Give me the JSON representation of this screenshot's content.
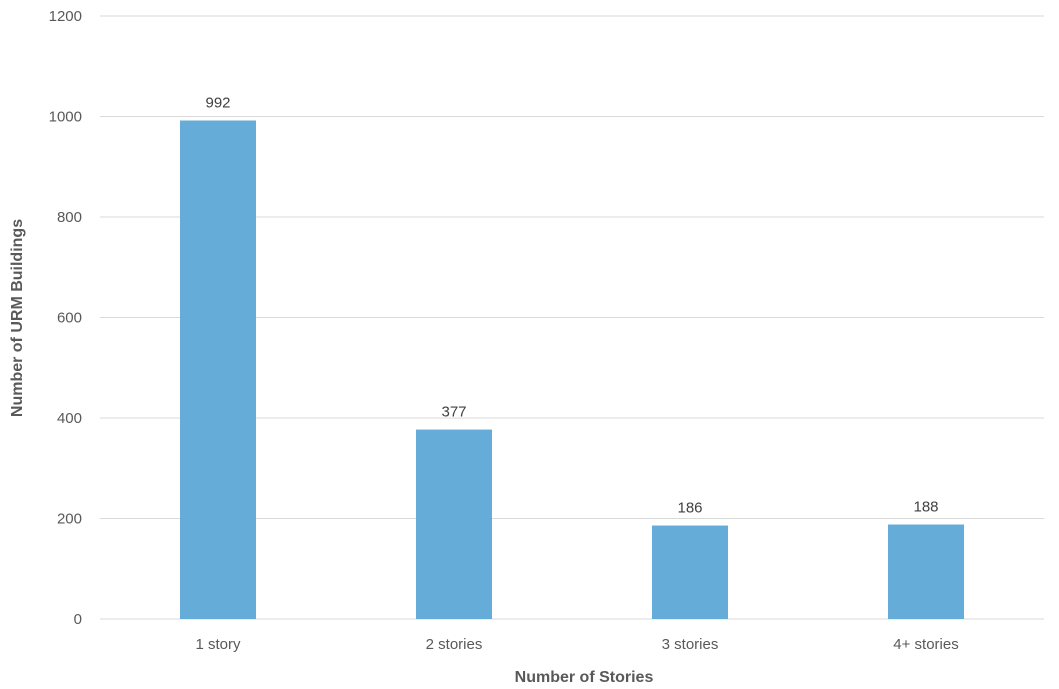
{
  "chart_data": {
    "type": "bar",
    "categories": [
      "1 story",
      "2 stories",
      "3 stories",
      "4+ stories"
    ],
    "values": [
      992,
      377,
      186,
      188
    ],
    "data_labels": [
      "992",
      "377",
      "186",
      "188"
    ],
    "title": "",
    "xlabel": "Number of Stories",
    "ylabel": "Number of URM Buildings",
    "ylim": [
      0,
      1200
    ],
    "yticks": [
      0,
      200,
      400,
      600,
      800,
      1000,
      1200
    ],
    "grid": true,
    "legend": "none",
    "bar_color": "#65acd9",
    "grid_color": "#d9d9d9",
    "text_color": "#595959"
  }
}
